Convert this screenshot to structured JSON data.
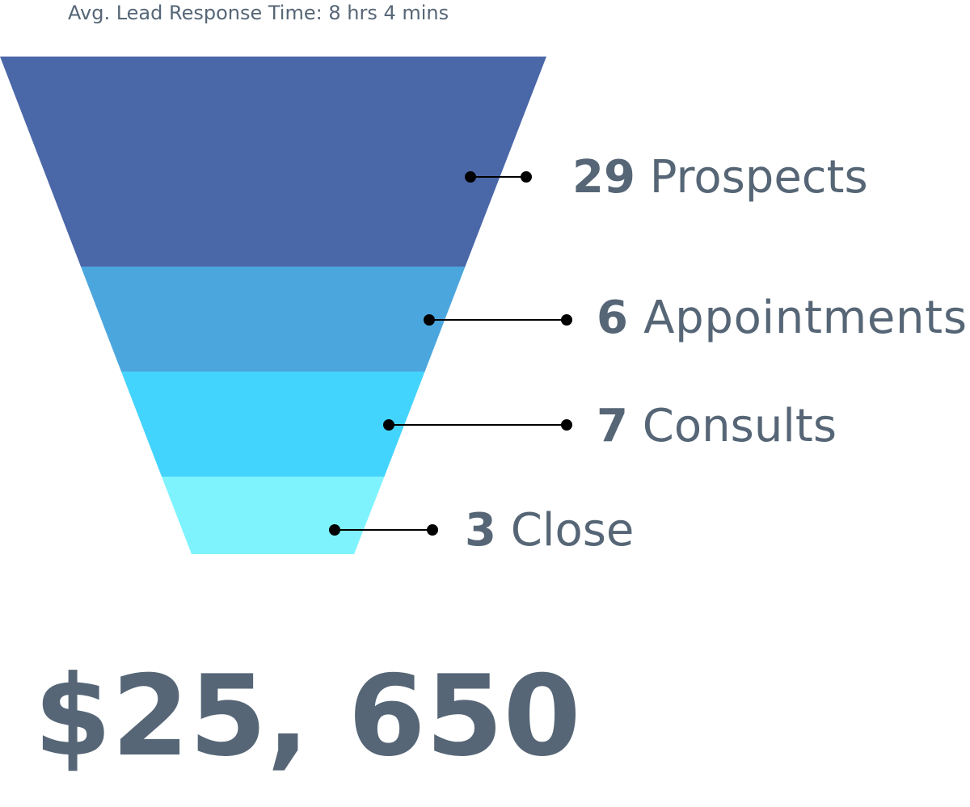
{
  "subtitle": "Avg. Lead Response Time: 8 hrs 4 mins",
  "stages": [
    {
      "count": 29,
      "label": "Prospects"
    },
    {
      "count": 6,
      "label": "Appointments"
    },
    {
      "count": 7,
      "label": "Consults"
    },
    {
      "count": 3,
      "label": "Close"
    }
  ],
  "total": "$25, 650"
}
